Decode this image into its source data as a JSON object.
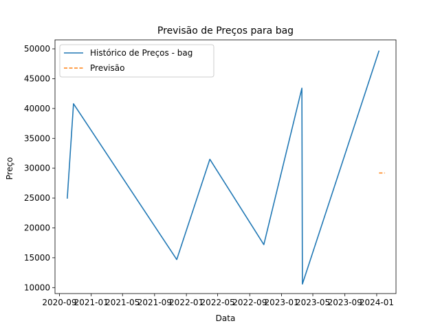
{
  "chart_data": {
    "type": "line",
    "title": "Previsão de Preços para bag",
    "xlabel": "Data",
    "ylabel": "Preço",
    "x_ticks": [
      "2020-09",
      "2021-01",
      "2021-05",
      "2021-09",
      "2022-01",
      "2022-05",
      "2022-09",
      "2023-01",
      "2023-05",
      "2023-09",
      "2024-01"
    ],
    "y_ticks": [
      10000,
      15000,
      20000,
      25000,
      30000,
      35000,
      40000,
      45000,
      50000
    ],
    "xlim": [
      "2020-08-15",
      "2024-03-15"
    ],
    "ylim": [
      9000,
      51500
    ],
    "legend": {
      "placement": "upper-left"
    },
    "grid": false,
    "series": [
      {
        "name": "Histórico de Preços - bag",
        "color": "#1f77b4",
        "style": "solid",
        "points": [
          {
            "x": "2020-10-01",
            "y": 24900
          },
          {
            "x": "2020-10-25",
            "y": 40800
          },
          {
            "x": "2021-11-25",
            "y": 14700
          },
          {
            "x": "2022-04-01",
            "y": 31500
          },
          {
            "x": "2022-10-25",
            "y": 17200
          },
          {
            "x": "2023-03-20",
            "y": 43400
          },
          {
            "x": "2023-03-22",
            "y": 10600
          },
          {
            "x": "2024-01-10",
            "y": 49700
          }
        ]
      },
      {
        "name": "Previsão",
        "color": "#ff7f0e",
        "style": "dashed",
        "points": [
          {
            "x": "2024-01-10",
            "y": 29200
          },
          {
            "x": "2024-02-01",
            "y": 29200
          }
        ]
      }
    ]
  }
}
